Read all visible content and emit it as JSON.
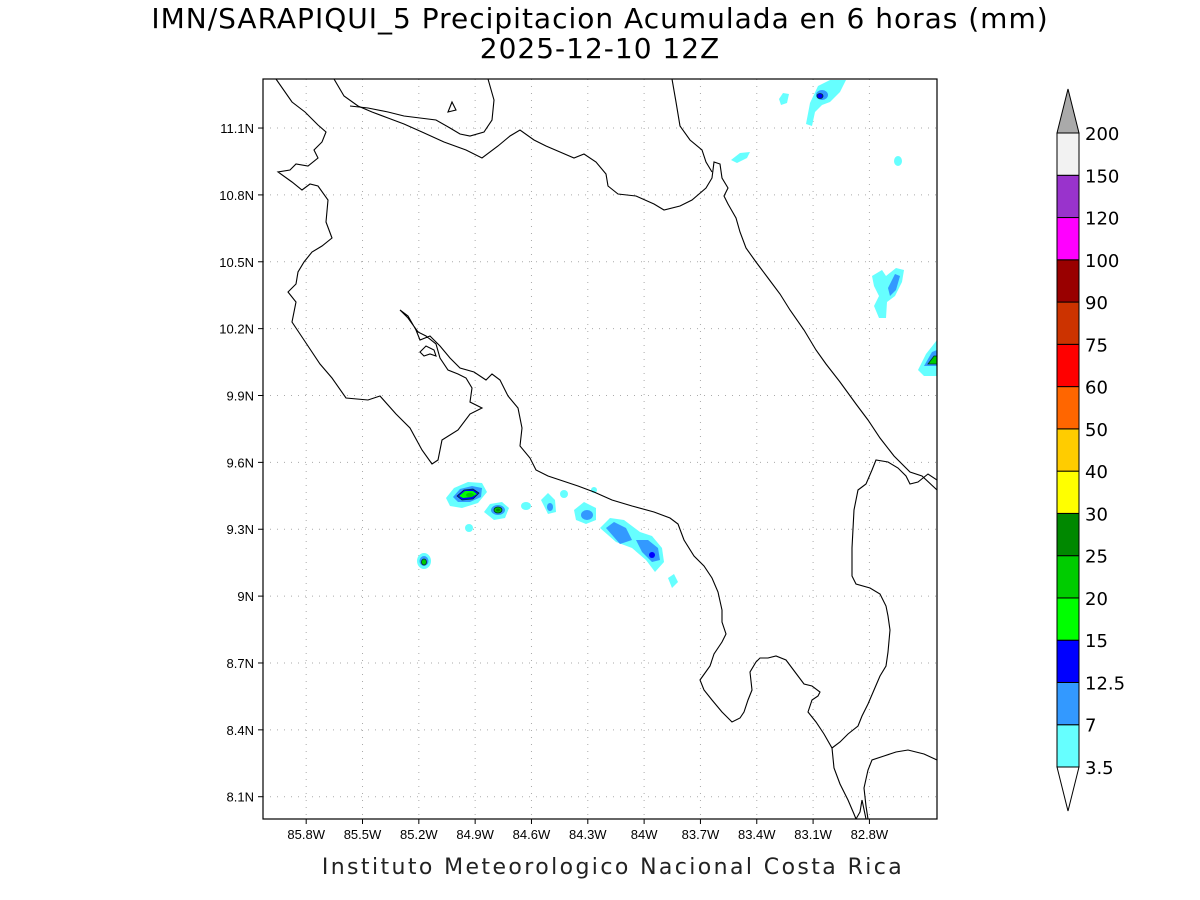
{
  "title": {
    "line1": "IMN/SARAPIQUI_5 Precipitacion Acumulada en 6 horas (mm)",
    "line2": "2025-12-10 12Z"
  },
  "footer": "Instituto Meteorologico Nacional Costa Rica",
  "map": {
    "lon_range": [
      -86.03,
      -82.44
    ],
    "lat_range": [
      8.0,
      11.32
    ],
    "x_ticks": [
      {
        "value": -85.8,
        "label": "85.8W"
      },
      {
        "value": -85.5,
        "label": "85.5W"
      },
      {
        "value": -85.2,
        "label": "85.2W"
      },
      {
        "value": -84.9,
        "label": "84.9W"
      },
      {
        "value": -84.6,
        "label": "84.6W"
      },
      {
        "value": -84.3,
        "label": "84.3W"
      },
      {
        "value": -84.0,
        "label": "84W"
      },
      {
        "value": -83.7,
        "label": "83.7W"
      },
      {
        "value": -83.4,
        "label": "83.4W"
      },
      {
        "value": -83.1,
        "label": "83.1W"
      },
      {
        "value": -82.8,
        "label": "82.8W"
      }
    ],
    "y_ticks": [
      {
        "value": 11.1,
        "label": "11.1N"
      },
      {
        "value": 10.8,
        "label": "10.8N"
      },
      {
        "value": 10.5,
        "label": "10.5N"
      },
      {
        "value": 10.2,
        "label": "10.2N"
      },
      {
        "value": 9.9,
        "label": "9.9N"
      },
      {
        "value": 9.6,
        "label": "9.6N"
      },
      {
        "value": 9.3,
        "label": "9.3N"
      },
      {
        "value": 9.0,
        "label": "9N"
      },
      {
        "value": 8.7,
        "label": "8.7N"
      },
      {
        "value": 8.4,
        "label": "8.4N"
      },
      {
        "value": 8.1,
        "label": "8.1N"
      }
    ],
    "grid": "dotted"
  },
  "colorbar": {
    "labels": [
      "3.5",
      "7",
      "12.5",
      "15",
      "20",
      "25",
      "30",
      "40",
      "50",
      "60",
      "75",
      "90",
      "100",
      "120",
      "150",
      "200"
    ],
    "colors": [
      "#66ffff",
      "#3399ff",
      "#0000ff",
      "#00ff00",
      "#00cc00",
      "#008800",
      "#ffff00",
      "#ffcc00",
      "#ff6600",
      "#ff0000",
      "#cc3300",
      "#990000",
      "#ff00ff",
      "#9933cc",
      "#f2f2f2"
    ],
    "over_color": "#aaaaaa",
    "under_color": "#ffffff"
  },
  "precip_colors": {
    "light": "#66ffff",
    "medium": "#3399ff",
    "heavy": "#0000ff",
    "green": "#00ff00",
    "darkgreen": "#00cc00"
  }
}
